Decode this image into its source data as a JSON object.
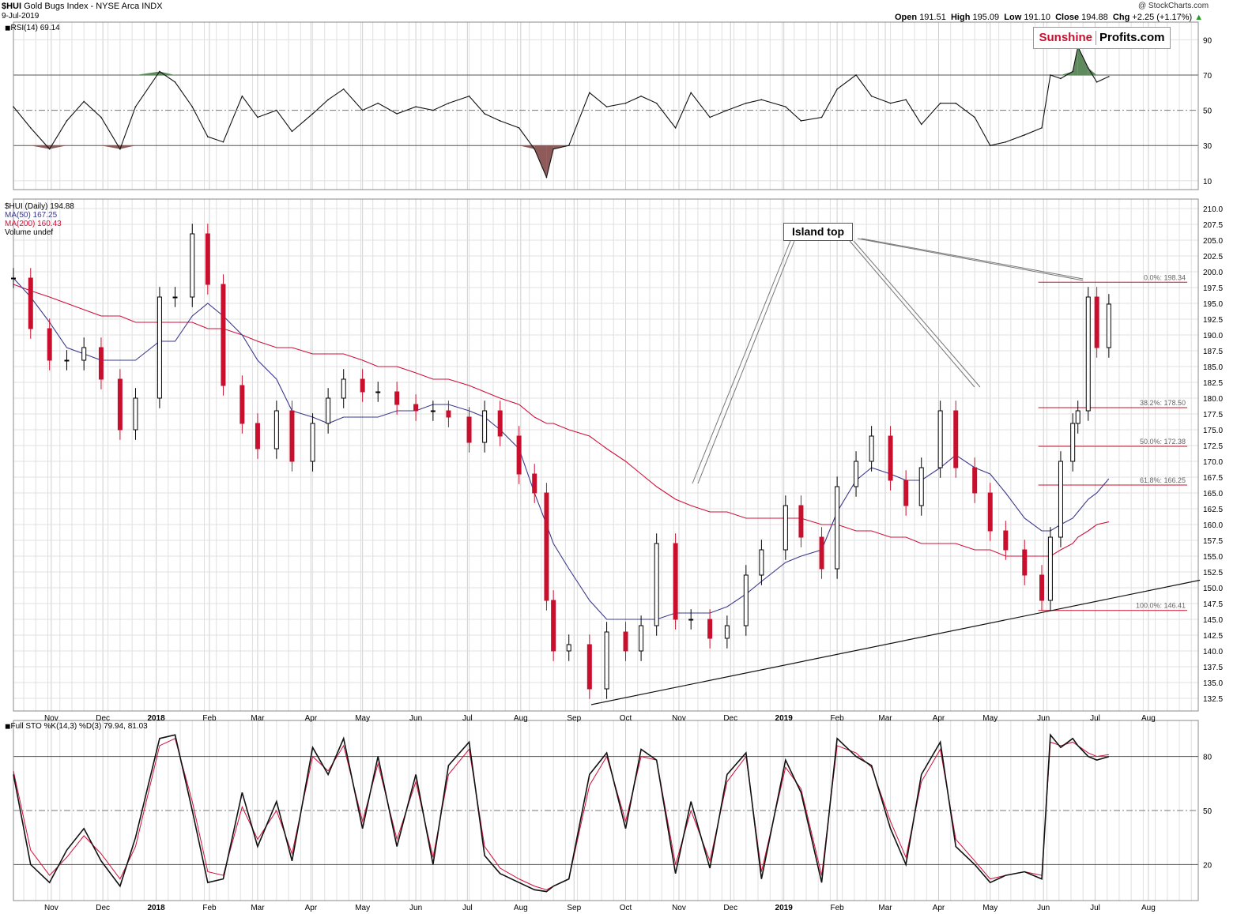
{
  "header": {
    "symbol": "$HUI",
    "name": "Gold Bugs Index - NYSE Arca INDX",
    "date": "9-Jul-2019",
    "copyright": "@ StockCharts.com",
    "open_label": "Open",
    "open": "191.51",
    "high_label": "High",
    "high": "195.09",
    "low_label": "Low",
    "low": "191.10",
    "close_label": "Close",
    "close": "194.88",
    "chg_label": "Chg",
    "chg": "+2.25 (+1.17%)"
  },
  "logo": {
    "part1": "Sunshine",
    "part2": "Profits.com"
  },
  "annotation": {
    "island_top": "Island top"
  },
  "colors": {
    "up": "#000000",
    "down": "#c8102e",
    "ma50": "#3a3a8c",
    "ma200": "#d0103a",
    "rsi_over": "#5e8a5e",
    "rsi_under": "#8e5a5a",
    "grid": "#e0e0e0"
  },
  "chart_data": [
    {
      "type": "line",
      "panel": "RSI",
      "legend": "RSI(14) 69.14",
      "yticks": [
        10,
        30,
        50,
        70,
        90
      ],
      "ylim": [
        5,
        100
      ],
      "x_dates": [
        "2017-10-10",
        "2017-10-20",
        "2017-10-31",
        "2017-11-10",
        "2017-11-20",
        "2017-11-30",
        "2017-12-11",
        "2017-12-20",
        "2018-01-03",
        "2018-01-12",
        "2018-01-22",
        "2018-01-31",
        "2018-02-09",
        "2018-02-20",
        "2018-03-01",
        "2018-03-12",
        "2018-03-21",
        "2018-04-02",
        "2018-04-11",
        "2018-04-20",
        "2018-05-01",
        "2018-05-10",
        "2018-05-21",
        "2018-06-01",
        "2018-06-11",
        "2018-06-20",
        "2018-07-02",
        "2018-07-11",
        "2018-07-20",
        "2018-07-31",
        "2018-08-09",
        "2018-08-16",
        "2018-08-20",
        "2018-08-29",
        "2018-09-10",
        "2018-09-20",
        "2018-10-01",
        "2018-10-10",
        "2018-10-19",
        "2018-10-30",
        "2018-11-08",
        "2018-11-19",
        "2018-11-29",
        "2018-12-10",
        "2018-12-19",
        "2019-01-02",
        "2019-01-11",
        "2019-01-23",
        "2019-02-01",
        "2019-02-12",
        "2019-02-21",
        "2019-03-04",
        "2019-03-13",
        "2019-03-22",
        "2019-04-02",
        "2019-04-11",
        "2019-04-22",
        "2019-05-01",
        "2019-05-10",
        "2019-05-21",
        "2019-05-31",
        "2019-06-05",
        "2019-06-11",
        "2019-06-18",
        "2019-06-21",
        "2019-06-27",
        "2019-07-02",
        "2019-07-09"
      ],
      "values": [
        52,
        40,
        28,
        44,
        55,
        46,
        28,
        52,
        72,
        66,
        52,
        35,
        32,
        58,
        46,
        50,
        38,
        48,
        56,
        62,
        50,
        54,
        48,
        52,
        50,
        54,
        58,
        48,
        44,
        40,
        28,
        12,
        28,
        30,
        60,
        52,
        54,
        58,
        54,
        40,
        60,
        46,
        50,
        54,
        56,
        52,
        44,
        46,
        62,
        70,
        58,
        54,
        56,
        42,
        54,
        54,
        46,
        30,
        32,
        36,
        40,
        70,
        68,
        72,
        86,
        74,
        66,
        69.14
      ]
    },
    {
      "type": "candlestick",
      "panel": "price",
      "legend": {
        "main": "$HUI (Daily) 194.88",
        "ma50": "MA(50) 167.25",
        "ma200": "MA(200) 160.43",
        "volume": "Volume undef"
      },
      "yticks": [
        132.5,
        135.0,
        137.5,
        140.0,
        142.5,
        145.0,
        147.5,
        150.0,
        152.5,
        155.0,
        157.5,
        160.0,
        162.5,
        165.0,
        167.5,
        170.0,
        172.5,
        175.0,
        177.5,
        180.0,
        182.5,
        185.0,
        187.5,
        190.0,
        192.5,
        195.0,
        197.5,
        200.0,
        202.5,
        205.0,
        207.5,
        210.0
      ],
      "ylim": [
        130.5,
        211.5
      ],
      "x_dates": [
        "2017-10-10",
        "2017-10-20",
        "2017-10-31",
        "2017-11-10",
        "2017-11-20",
        "2017-11-30",
        "2017-12-11",
        "2017-12-20",
        "2018-01-03",
        "2018-01-12",
        "2018-01-22",
        "2018-01-31",
        "2018-02-09",
        "2018-02-20",
        "2018-03-01",
        "2018-03-12",
        "2018-03-21",
        "2018-04-02",
        "2018-04-11",
        "2018-04-20",
        "2018-05-01",
        "2018-05-10",
        "2018-05-21",
        "2018-06-01",
        "2018-06-11",
        "2018-06-20",
        "2018-07-02",
        "2018-07-11",
        "2018-07-20",
        "2018-07-31",
        "2018-08-09",
        "2018-08-16",
        "2018-08-20",
        "2018-08-29",
        "2018-09-10",
        "2018-09-20",
        "2018-10-01",
        "2018-10-10",
        "2018-10-19",
        "2018-10-30",
        "2018-11-08",
        "2018-11-19",
        "2018-11-29",
        "2018-12-10",
        "2018-12-19",
        "2019-01-02",
        "2019-01-11",
        "2019-01-23",
        "2019-02-01",
        "2019-02-12",
        "2019-02-21",
        "2019-03-04",
        "2019-03-13",
        "2019-03-22",
        "2019-04-02",
        "2019-04-11",
        "2019-04-22",
        "2019-05-01",
        "2019-05-10",
        "2019-05-21",
        "2019-05-31",
        "2019-06-05",
        "2019-06-11",
        "2019-06-18",
        "2019-06-21",
        "2019-06-27",
        "2019-07-02",
        "2019-07-09"
      ],
      "close": [
        199,
        191,
        186,
        186,
        188,
        183,
        175,
        180,
        196,
        196,
        206,
        198,
        182,
        176,
        172,
        178,
        170,
        176,
        180,
        183,
        181,
        181,
        179,
        178,
        178,
        177,
        173,
        178,
        174,
        168,
        165,
        148,
        140,
        141,
        134,
        143,
        140,
        144,
        157,
        145,
        145,
        142,
        144,
        152,
        156,
        163,
        158,
        153,
        166,
        170,
        174,
        167,
        163,
        169,
        178,
        169,
        165,
        159,
        156,
        152,
        148,
        158,
        170,
        176,
        178,
        196,
        188,
        194.88
      ],
      "ma50": [
        199,
        196,
        192,
        188,
        187,
        186,
        186,
        186,
        189,
        189,
        193,
        195,
        193,
        190,
        186,
        183,
        178,
        177,
        176,
        177,
        177,
        177,
        178,
        178,
        179,
        179,
        178,
        177,
        175,
        172,
        165,
        160,
        157,
        153,
        148,
        145,
        145,
        145,
        145,
        146,
        146,
        146,
        147,
        149,
        151,
        154,
        155,
        156,
        162,
        167,
        169,
        168,
        167,
        167,
        169,
        171,
        169,
        168,
        165,
        161,
        159,
        159,
        160,
        161,
        162,
        164,
        165,
        167.25
      ],
      "ma200": [
        198,
        197,
        196,
        195,
        194,
        193,
        193,
        192,
        192,
        192,
        192,
        191,
        191,
        190,
        189,
        188,
        188,
        187,
        187,
        187,
        186,
        185,
        185,
        184,
        183,
        183,
        182,
        181,
        180,
        179,
        177,
        176,
        176,
        175,
        174,
        172,
        170,
        168,
        166,
        164,
        163,
        162,
        162,
        161,
        161,
        161,
        161,
        160,
        160,
        159,
        159,
        158,
        158,
        157,
        157,
        157,
        156,
        156,
        155,
        155,
        155,
        155,
        156,
        157,
        158,
        159,
        160,
        160.43
      ]
    },
    {
      "type": "line",
      "panel": "Full STO",
      "legend": "Full STO %K(14,3) %D(3) 79.94, 81.03",
      "yticks": [
        20,
        50,
        80
      ],
      "ylim": [
        0,
        100
      ],
      "x_dates": [
        "2017-10-10",
        "2017-10-20",
        "2017-10-31",
        "2017-11-10",
        "2017-11-20",
        "2017-11-30",
        "2017-12-11",
        "2017-12-20",
        "2018-01-03",
        "2018-01-12",
        "2018-01-22",
        "2018-01-31",
        "2018-02-09",
        "2018-02-20",
        "2018-03-01",
        "2018-03-12",
        "2018-03-21",
        "2018-04-02",
        "2018-04-11",
        "2018-04-20",
        "2018-05-01",
        "2018-05-10",
        "2018-05-21",
        "2018-06-01",
        "2018-06-11",
        "2018-06-20",
        "2018-07-02",
        "2018-07-11",
        "2018-07-20",
        "2018-07-31",
        "2018-08-09",
        "2018-08-16",
        "2018-08-20",
        "2018-08-29",
        "2018-09-10",
        "2018-09-20",
        "2018-10-01",
        "2018-10-10",
        "2018-10-19",
        "2018-10-30",
        "2018-11-08",
        "2018-11-19",
        "2018-11-29",
        "2018-12-10",
        "2018-12-19",
        "2019-01-02",
        "2019-01-11",
        "2019-01-23",
        "2019-02-01",
        "2019-02-12",
        "2019-02-21",
        "2019-03-04",
        "2019-03-13",
        "2019-03-22",
        "2019-04-02",
        "2019-04-11",
        "2019-04-22",
        "2019-05-01",
        "2019-05-10",
        "2019-05-21",
        "2019-05-31",
        "2019-06-05",
        "2019-06-11",
        "2019-06-18",
        "2019-06-21",
        "2019-06-27",
        "2019-07-02",
        "2019-07-09"
      ],
      "series": [
        {
          "name": "%K",
          "values": [
            70,
            20,
            10,
            28,
            40,
            22,
            8,
            35,
            90,
            92,
            50,
            10,
            12,
            60,
            30,
            55,
            22,
            85,
            70,
            90,
            40,
            80,
            30,
            70,
            20,
            75,
            88,
            25,
            15,
            10,
            6,
            5,
            8,
            12,
            70,
            82,
            40,
            84,
            78,
            15,
            55,
            18,
            70,
            82,
            12,
            78,
            60,
            10,
            90,
            80,
            75,
            40,
            20,
            70,
            88,
            30,
            20,
            10,
            14,
            16,
            12,
            92,
            85,
            90,
            86,
            80,
            78,
            79.94
          ]
        },
        {
          "name": "%D",
          "values": [
            72,
            28,
            14,
            24,
            36,
            26,
            12,
            30,
            86,
            90,
            55,
            16,
            14,
            52,
            34,
            50,
            26,
            80,
            72,
            86,
            44,
            76,
            34,
            66,
            24,
            70,
            84,
            30,
            18,
            12,
            8,
            6,
            8,
            12,
            64,
            80,
            44,
            80,
            78,
            20,
            50,
            22,
            66,
            80,
            16,
            74,
            62,
            14,
            86,
            82,
            74,
            44,
            24,
            66,
            84,
            34,
            22,
            12,
            14,
            16,
            14,
            88,
            86,
            88,
            86,
            82,
            80,
            81.03
          ]
        }
      ]
    }
  ],
  "x_axis": {
    "months": [
      "Nov",
      "Dec",
      "2018",
      "Feb",
      "Mar",
      "Apr",
      "May",
      "Jun",
      "Jul",
      "Aug",
      "Sep",
      "Oct",
      "Nov",
      "Dec",
      "2019",
      "Feb",
      "Mar",
      "Apr",
      "May",
      "Jun",
      "Jul",
      "Aug"
    ]
  },
  "fibonacci": {
    "levels": [
      198.34,
      178.5,
      172.38,
      166.25,
      146.41
    ],
    "labels": [
      "0.0%: 198.34",
      "38.2%: 178.50",
      "50.0%: 172.38",
      "61.8%: 166.25",
      "100.0%: 146.41"
    ]
  },
  "trendline": {
    "start": [
      "2018-09-11",
      131.5
    ],
    "end": [
      "2019-08-31",
      151.2
    ]
  }
}
